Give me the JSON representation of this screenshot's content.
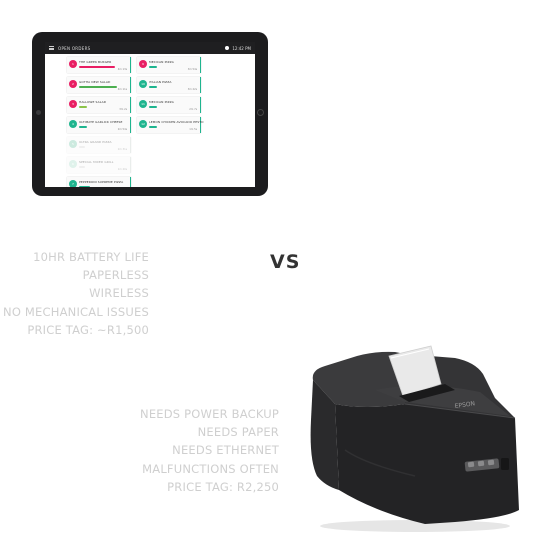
{
  "ipad": {
    "app_title": "OPEN ORDERS",
    "time": "12:42 PM",
    "columns": [
      [
        {
          "num": "1",
          "name": "THE GREEK BURGER",
          "time": "4m 13s",
          "color": "#e91e63",
          "bar": "#e91e63",
          "bar_fill": 0.85,
          "faded": false
        },
        {
          "num": "2",
          "name": "GOTHA NEW SALAD",
          "time": "4m 11s",
          "color": "#e91e63",
          "bar": "#4caf50",
          "bar_fill": 0.9,
          "faded": false
        },
        {
          "num": "3",
          "name": "HALLOWE SALAD",
          "time": "3m 2s",
          "color": "#e91e63",
          "bar": "#8bc34a",
          "bar_fill": 0.2,
          "faded": false
        },
        {
          "num": "4",
          "name": "ULTIMATE GARLICK CHEESE",
          "time": "2m 54s",
          "color": "#1fb58f",
          "bar": "#1fb58f",
          "bar_fill": 0.2,
          "faded": false
        },
        {
          "num": "5",
          "name": "ULTRA GRAND PIZZA",
          "time": "2m 31s",
          "color": "#8fd1ba",
          "bar": "#dddddd",
          "bar_fill": 0.0,
          "faded": true
        },
        {
          "num": "6",
          "name": "SPECIAL MIXED GRILL",
          "time": "1m 40s",
          "color": "#b9e3d3",
          "bar": "#dddddd",
          "bar_fill": 0.0,
          "faded": true
        },
        {
          "num": "7",
          "name": "PEPPERONI SUPREME PIZZA",
          "time": "1m 12s",
          "color": "#1fb58f",
          "bar": "#1fb58f",
          "bar_fill": 0.25,
          "faded": false
        },
        {
          "num": "8",
          "name": "MEXICA PIZZA",
          "time": "0m 30s",
          "color": "#1fb58f",
          "bar": "#1fb58f",
          "bar_fill": 0.25,
          "faded": false
        }
      ],
      [
        {
          "num": "9",
          "name": "MEXICAN PIZZA",
          "time": "3m 54s",
          "color": "#e91e63",
          "bar": "#1fb58f",
          "bar_fill": 0.2,
          "faded": false
        },
        {
          "num": "10",
          "name": "ITALIAN PIZZA",
          "time": "3m 22s",
          "color": "#1fb58f",
          "bar": "#1fb58f",
          "bar_fill": 0.2,
          "faded": false
        },
        {
          "num": "11",
          "name": "MEXICAN PIZZA",
          "time": "2m 7s",
          "color": "#1fb58f",
          "bar": "#1fb58f",
          "bar_fill": 0.2,
          "faded": false
        },
        {
          "num": "12",
          "name": "LEMON CHICKEN AVOCADO PESTO",
          "time": "1m 5s",
          "color": "#1fb58f",
          "bar": "#1fb58f",
          "bar_fill": 0.2,
          "faded": false
        }
      ]
    ]
  },
  "vs_label": "VS",
  "ipad_features": [
    "10HR BATTERY LIFE",
    "PAPERLESS",
    "WIRELESS",
    "NO MECHANICAL ISSUES",
    "PRICE TAG: ~R1,500"
  ],
  "printer_features": [
    "NEEDS POWER BACKUP",
    "NEEDS PAPER",
    "NEEDS ETHERNET",
    "MALFUNCTIONS OFTEN",
    "PRICE TAG: R2,250"
  ],
  "printer_brand": "EPSON"
}
